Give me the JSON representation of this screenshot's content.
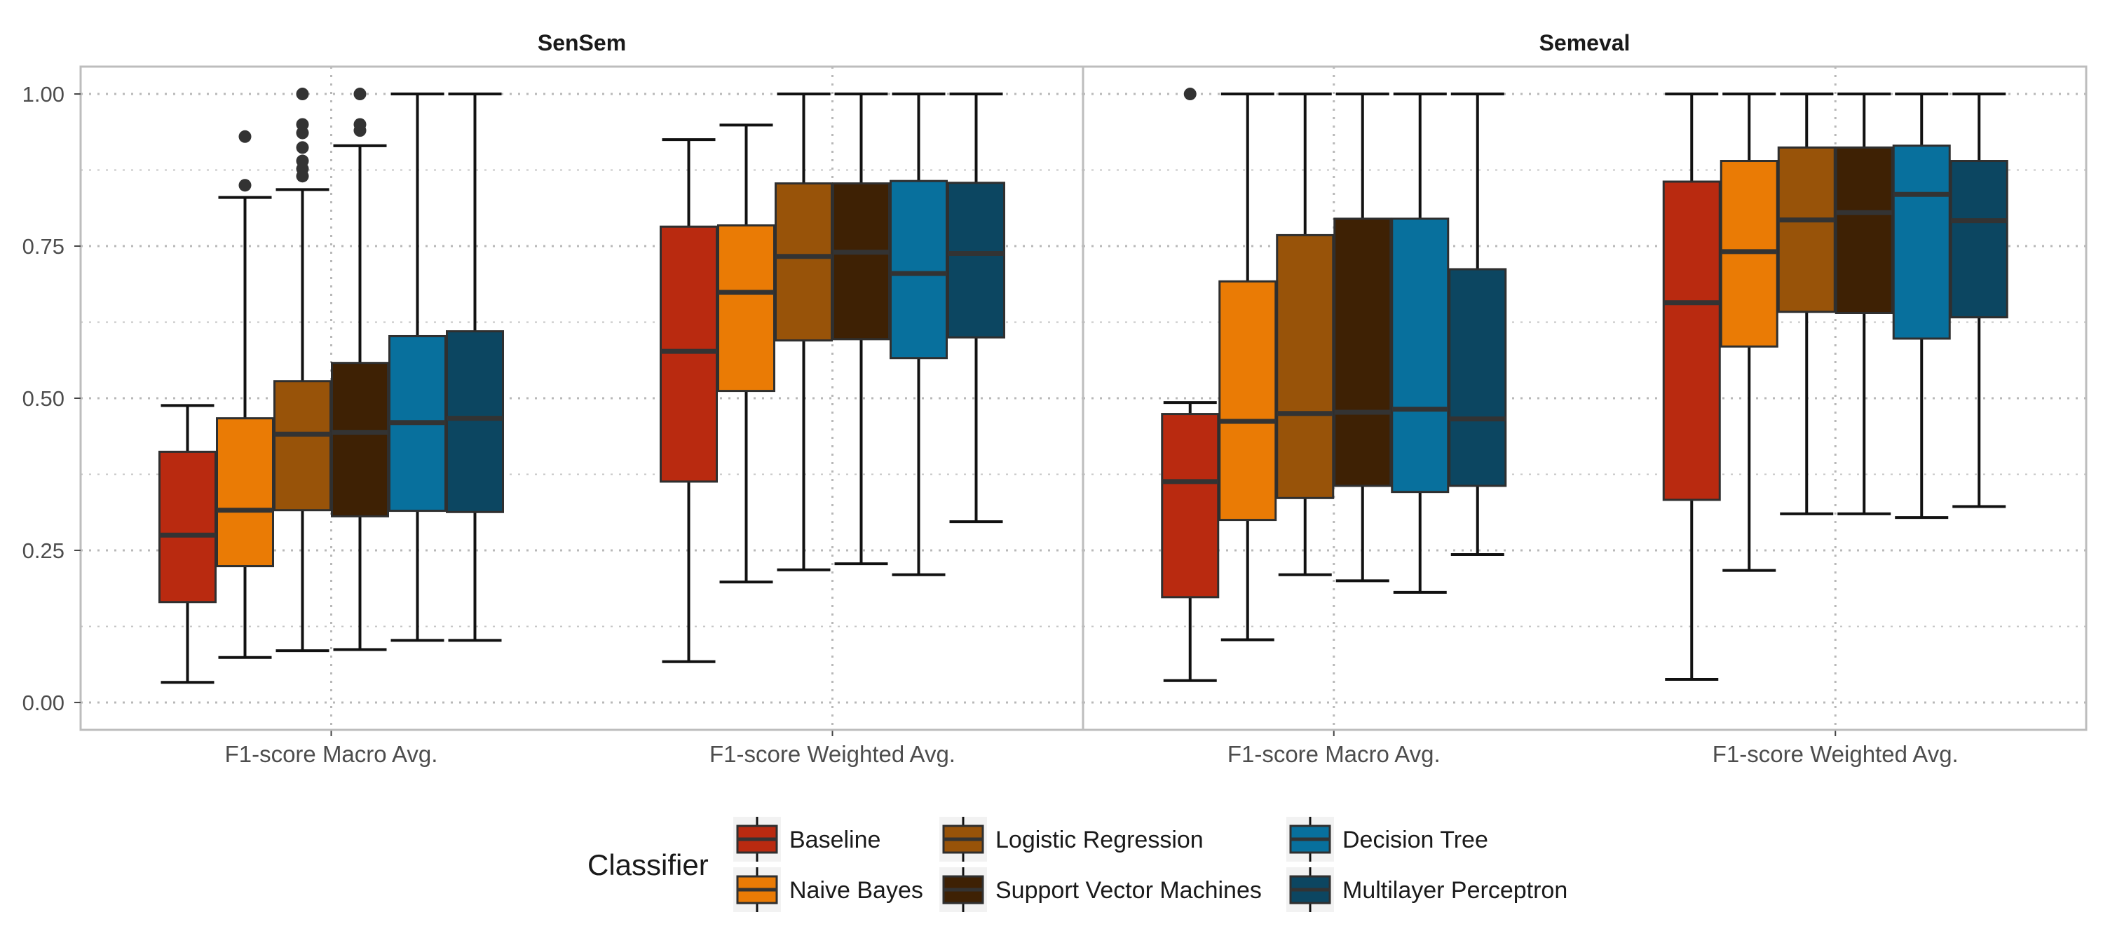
{
  "chart_data": {
    "type": "boxplot",
    "y_ticks": [
      "0.00",
      "0.25",
      "0.50",
      "0.75",
      "1.00"
    ],
    "y_tick_values": [
      0,
      0.25,
      0.5,
      0.75,
      1.0
    ],
    "ylim": [
      -0.045,
      1.045
    ],
    "grid": true,
    "legend": {
      "title": "Classifier",
      "position": "bottom"
    },
    "classifiers": [
      {
        "name": "Baseline",
        "color": "#B92A10"
      },
      {
        "name": "Naive Bayes",
        "color": "#EA7B05"
      },
      {
        "name": "Logistic Regression",
        "color": "#985309"
      },
      {
        "name": "Support Vector Machines",
        "color": "#3E2104"
      },
      {
        "name": "Decision Tree",
        "color": "#08709D"
      },
      {
        "name": "Multilayer Perceptron",
        "color": "#0C4661"
      }
    ],
    "panels": [
      {
        "title": "SenSem",
        "groups": [
          {
            "label": "F1-score Macro Avg.",
            "boxes": [
              {
                "q1": 0.165,
                "median": 0.275,
                "q3": 0.412,
                "min": 0.033,
                "max": 0.488,
                "outliers": []
              },
              {
                "q1": 0.224,
                "median": 0.316,
                "q3": 0.467,
                "min": 0.074,
                "max": 0.83,
                "outliers": [
                  0.85,
                  0.93
                ]
              },
              {
                "q1": 0.316,
                "median": 0.441,
                "q3": 0.528,
                "min": 0.085,
                "max": 0.843,
                "outliers": [
                  0.865,
                  0.877,
                  0.89,
                  0.912,
                  0.936,
                  0.95,
                  1.0
                ]
              },
              {
                "q1": 0.306,
                "median": 0.444,
                "q3": 0.558,
                "min": 0.087,
                "max": 0.915,
                "outliers": [
                  0.94,
                  0.95,
                  1.0
                ]
              },
              {
                "q1": 0.315,
                "median": 0.46,
                "q3": 0.602,
                "min": 0.102,
                "max": 1.0,
                "outliers": []
              },
              {
                "q1": 0.313,
                "median": 0.467,
                "q3": 0.61,
                "min": 0.102,
                "max": 1.0,
                "outliers": []
              }
            ]
          },
          {
            "label": "F1-score Weighted Avg.",
            "boxes": [
              {
                "q1": 0.363,
                "median": 0.577,
                "q3": 0.782,
                "min": 0.067,
                "max": 0.925,
                "outliers": []
              },
              {
                "q1": 0.512,
                "median": 0.674,
                "q3": 0.784,
                "min": 0.198,
                "max": 0.949,
                "outliers": []
              },
              {
                "q1": 0.595,
                "median": 0.733,
                "q3": 0.853,
                "min": 0.218,
                "max": 1.0,
                "outliers": []
              },
              {
                "q1": 0.597,
                "median": 0.74,
                "q3": 0.853,
                "min": 0.228,
                "max": 1.0,
                "outliers": []
              },
              {
                "q1": 0.566,
                "median": 0.705,
                "q3": 0.857,
                "min": 0.21,
                "max": 1.0,
                "outliers": []
              },
              {
                "q1": 0.6,
                "median": 0.738,
                "q3": 0.854,
                "min": 0.297,
                "max": 1.0,
                "outliers": []
              }
            ]
          }
        ]
      },
      {
        "title": "Semeval",
        "groups": [
          {
            "label": "F1-score Macro Avg.",
            "boxes": [
              {
                "q1": 0.173,
                "median": 0.363,
                "q3": 0.474,
                "min": 0.036,
                "max": 0.493,
                "outliers": [
                  1.0
                ]
              },
              {
                "q1": 0.3,
                "median": 0.462,
                "q3": 0.692,
                "min": 0.103,
                "max": 1.0,
                "outliers": []
              },
              {
                "q1": 0.336,
                "median": 0.475,
                "q3": 0.768,
                "min": 0.21,
                "max": 1.0,
                "outliers": []
              },
              {
                "q1": 0.356,
                "median": 0.477,
                "q3": 0.795,
                "min": 0.2,
                "max": 1.0,
                "outliers": []
              },
              {
                "q1": 0.346,
                "median": 0.482,
                "q3": 0.795,
                "min": 0.181,
                "max": 1.0,
                "outliers": []
              },
              {
                "q1": 0.356,
                "median": 0.466,
                "q3": 0.712,
                "min": 0.243,
                "max": 1.0,
                "outliers": []
              }
            ]
          },
          {
            "label": "F1-score Weighted Avg.",
            "boxes": [
              {
                "q1": 0.333,
                "median": 0.657,
                "q3": 0.856,
                "min": 0.038,
                "max": 1.0,
                "outliers": []
              },
              {
                "q1": 0.585,
                "median": 0.741,
                "q3": 0.89,
                "min": 0.217,
                "max": 1.0,
                "outliers": []
              },
              {
                "q1": 0.642,
                "median": 0.793,
                "q3": 0.912,
                "min": 0.31,
                "max": 1.0,
                "outliers": []
              },
              {
                "q1": 0.64,
                "median": 0.805,
                "q3": 0.912,
                "min": 0.31,
                "max": 1.0,
                "outliers": []
              },
              {
                "q1": 0.598,
                "median": 0.835,
                "q3": 0.915,
                "min": 0.304,
                "max": 1.0,
                "outliers": []
              },
              {
                "q1": 0.633,
                "median": 0.792,
                "q3": 0.89,
                "min": 0.322,
                "max": 1.0,
                "outliers": []
              }
            ]
          }
        ]
      }
    ]
  }
}
